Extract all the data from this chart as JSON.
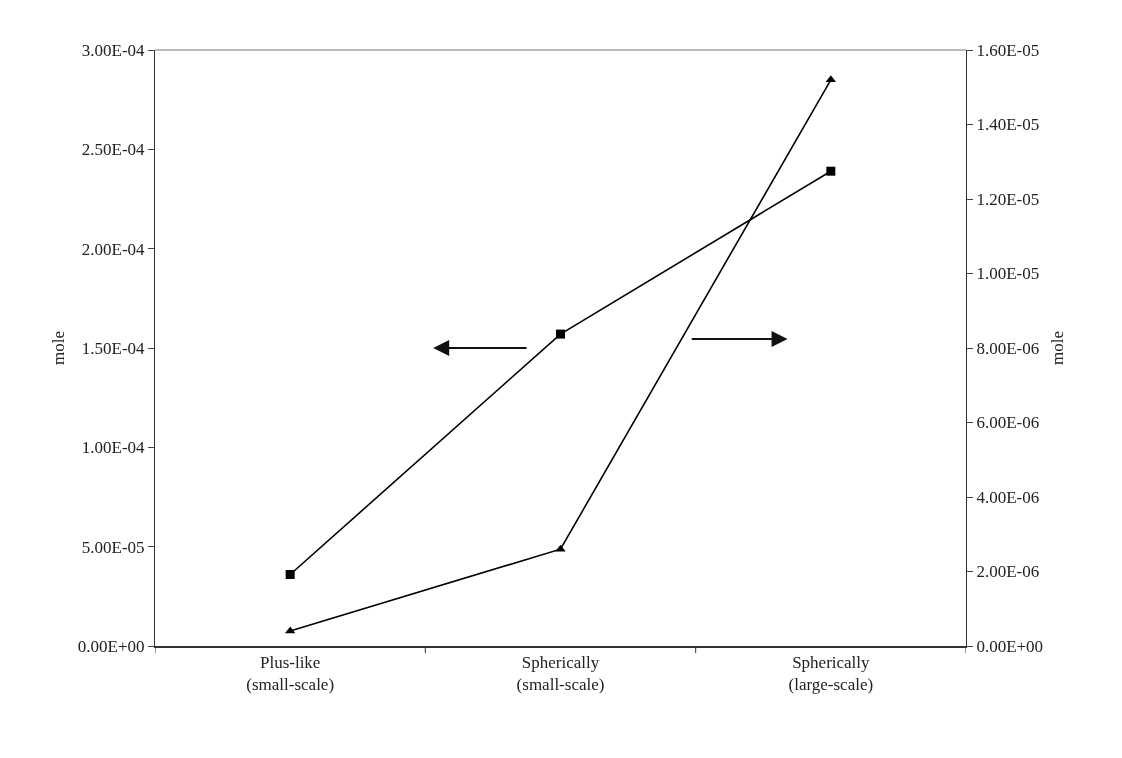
{
  "chart_data": {
    "type": "line",
    "categories": [
      "Plus-like\n(small-scale)",
      "Spherically\n(small-scale)",
      "Spherically\n(large-scale)"
    ],
    "series": [
      {
        "color": "#000000",
        "marker": "square",
        "values": [
          3.6e-05,
          0.000157,
          0.000239
        ]
      },
      {
        "color": "#000000",
        "marker": "triangle",
        "axis": "y2",
        "values": [
          4e-07,
          2.6e-06,
          1.52e-05
        ]
      }
    ],
    "ylabel": "mole",
    "y2label": "mole",
    "ylim": [
      0,
      0.0003
    ],
    "yticks": [
      {
        "value": 0,
        "label": "0.00E+00"
      },
      {
        "value": 5e-05,
        "label": "5.00E-05"
      },
      {
        "value": 0.0001,
        "label": "1.00E-04"
      },
      {
        "value": 0.00015,
        "label": "1.50E-04"
      },
      {
        "value": 0.0002,
        "label": "2.00E-04"
      },
      {
        "value": 0.00025,
        "label": "2.50E-04"
      },
      {
        "value": 0.0003,
        "label": "3.00E-04"
      }
    ],
    "y2lim": [
      0,
      1.6e-05
    ],
    "y2ticks": [
      {
        "value": 0,
        "label": "0.00E+00"
      },
      {
        "value": 2e-06,
        "label": "2.00E-06"
      },
      {
        "value": 4e-06,
        "label": "4.00E-06"
      },
      {
        "value": 6e-06,
        "label": "6.00E-06"
      },
      {
        "value": 8e-06,
        "label": "8.00E-06"
      },
      {
        "value": 1e-05,
        "label": "1.00E-05"
      },
      {
        "value": 1.2e-05,
        "label": "1.20E-05"
      },
      {
        "value": 1.4e-05,
        "label": "1.40E-05"
      },
      {
        "value": 1.6e-05,
        "label": "1.60E-05"
      }
    ],
    "line_style": "solid"
  }
}
